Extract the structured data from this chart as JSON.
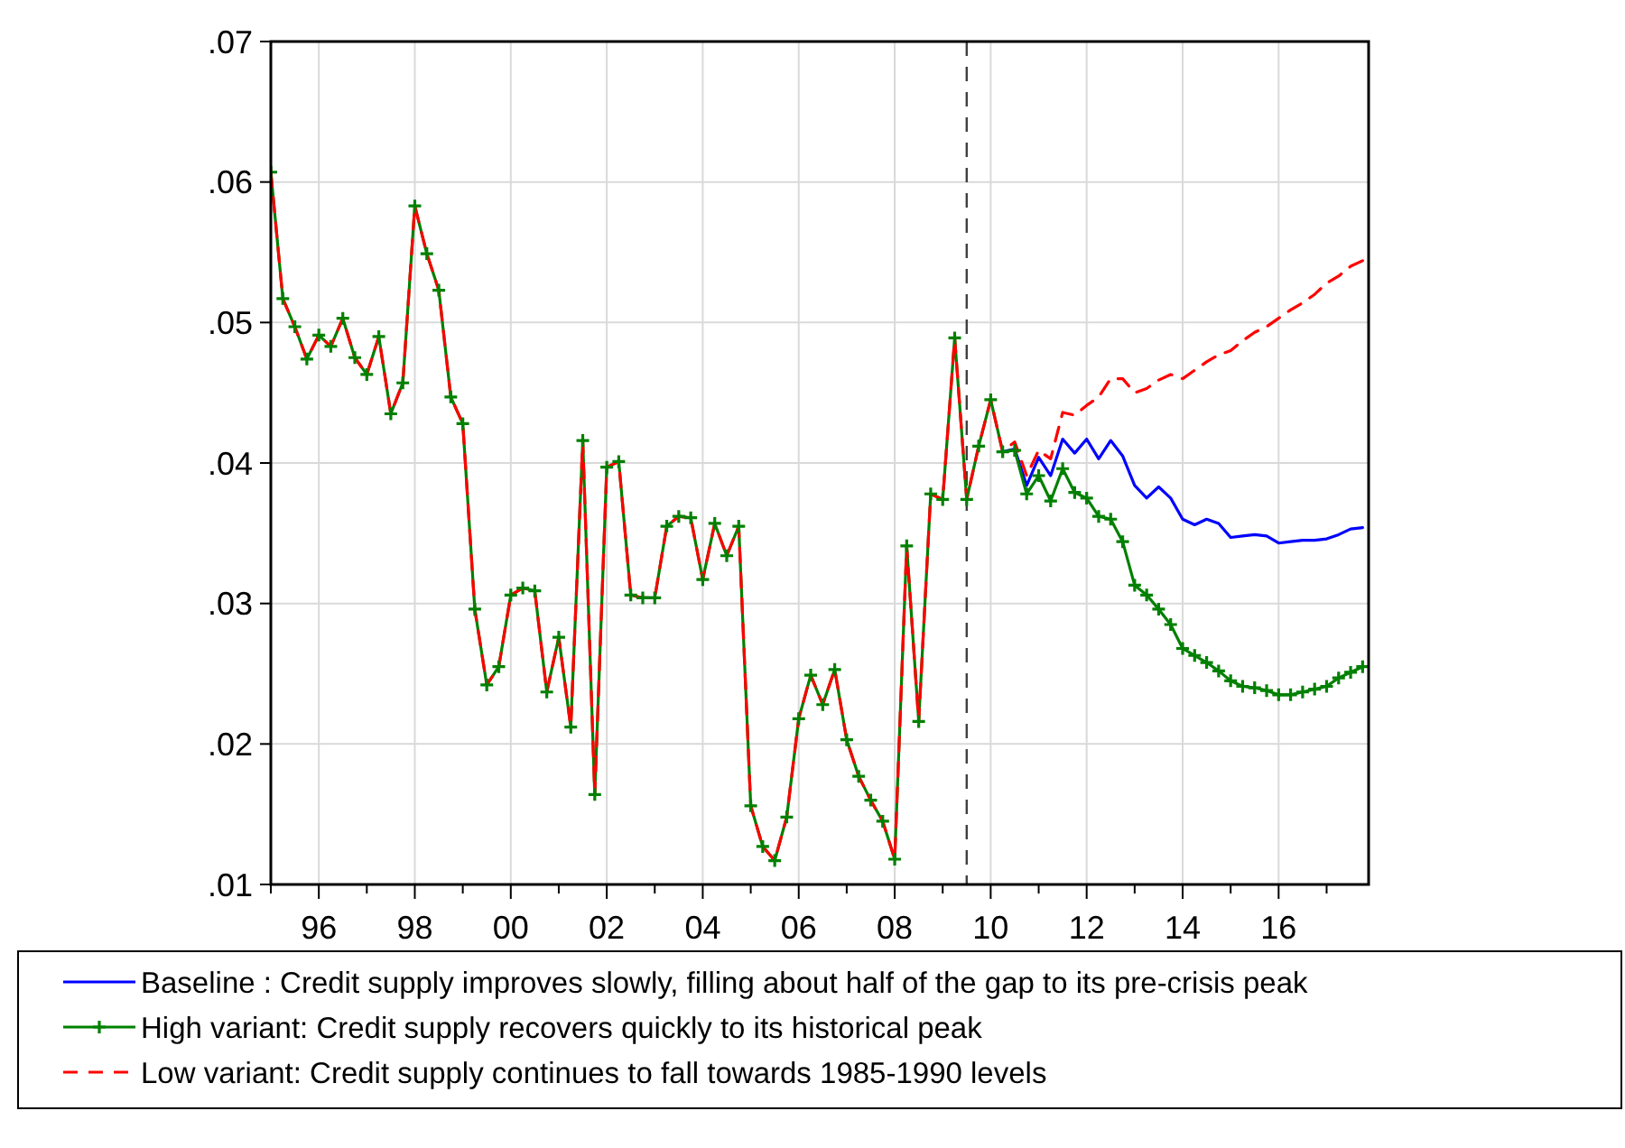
{
  "chart_data": {
    "type": "line",
    "x": [
      1995,
      1995.25,
      1995.5,
      1995.75,
      1996,
      1996.25,
      1996.5,
      1996.75,
      1997,
      1997.25,
      1997.5,
      1997.75,
      1998,
      1998.25,
      1998.5,
      1998.75,
      1999,
      1999.25,
      1999.5,
      1999.75,
      2000,
      2000.25,
      2000.5,
      2000.75,
      2001,
      2001.25,
      2001.5,
      2001.75,
      2002,
      2002.25,
      2002.5,
      2002.75,
      2003,
      2003.25,
      2003.5,
      2003.75,
      2004,
      2004.25,
      2004.5,
      2004.75,
      2005,
      2005.25,
      2005.5,
      2005.75,
      2006,
      2006.25,
      2006.5,
      2006.75,
      2007,
      2007.25,
      2007.5,
      2007.75,
      2008,
      2008.25,
      2008.5,
      2008.75,
      2009,
      2009.25,
      2009.5,
      2009.75,
      2010,
      2010.25,
      2010.5,
      2010.75,
      2011,
      2011.25,
      2011.5,
      2011.75,
      2012,
      2012.25,
      2012.5,
      2012.75,
      2013,
      2013.25,
      2013.5,
      2013.75,
      2014,
      2014.25,
      2014.5,
      2014.75,
      2015,
      2015.25,
      2015.5,
      2015.75,
      2016,
      2016.25,
      2016.5,
      2016.75,
      2017,
      2017.25,
      2017.5,
      2017.75
    ],
    "series": [
      {
        "name": "Baseline : Credit supply improves slowly, filling about half of the gap to its pre-crisis peak",
        "color": "#0000ff",
        "marker": "none",
        "line_style": "solid",
        "values": [
          null,
          null,
          null,
          null,
          null,
          null,
          null,
          null,
          null,
          null,
          null,
          null,
          null,
          null,
          null,
          null,
          null,
          null,
          null,
          null,
          null,
          null,
          null,
          null,
          null,
          null,
          null,
          null,
          null,
          null,
          null,
          null,
          null,
          null,
          null,
          null,
          null,
          null,
          null,
          null,
          null,
          null,
          null,
          null,
          null,
          null,
          null,
          null,
          null,
          null,
          null,
          null,
          null,
          null,
          null,
          null,
          null,
          null,
          null,
          null,
          null,
          0.0408,
          0.041,
          0.0384,
          0.0404,
          0.0391,
          0.0417,
          0.0407,
          0.0417,
          0.0403,
          0.0416,
          0.0405,
          0.0384,
          0.0375,
          0.0383,
          0.0375,
          0.036,
          0.0356,
          0.036,
          0.0357,
          0.0347,
          0.0348,
          0.0349,
          0.0348,
          0.0343,
          0.0344,
          0.0345,
          0.0345,
          0.0346,
          0.0349,
          0.0353,
          0.0354
        ]
      },
      {
        "name": "High variant: Credit supply recovers quickly to its historical peak",
        "color": "#008000",
        "marker": "cross",
        "line_style": "solid",
        "values": [
          0.0607,
          0.0517,
          0.0497,
          0.0474,
          0.0491,
          0.0483,
          0.0503,
          0.0475,
          0.0463,
          0.049,
          0.0435,
          0.0457,
          0.0583,
          0.0549,
          0.0523,
          0.0447,
          0.0428,
          0.0296,
          0.0242,
          0.0255,
          0.0306,
          0.0311,
          0.0309,
          0.0237,
          0.0276,
          0.0212,
          0.0416,
          0.0164,
          0.0397,
          0.0401,
          0.0306,
          0.0304,
          0.0304,
          0.0355,
          0.0362,
          0.0361,
          0.0317,
          0.0357,
          0.0334,
          0.0355,
          0.0156,
          0.0127,
          0.0117,
          0.0148,
          0.0218,
          0.0249,
          0.0228,
          0.0253,
          0.0203,
          0.0177,
          0.016,
          0.0145,
          0.0118,
          0.0341,
          0.0216,
          0.0378,
          0.0374,
          0.0489,
          0.0374,
          0.0412,
          0.0445,
          0.0408,
          0.0409,
          0.0378,
          0.0391,
          0.0373,
          0.0396,
          0.0379,
          0.0375,
          0.0362,
          0.036,
          0.0344,
          0.0313,
          0.0306,
          0.0296,
          0.0285,
          0.0268,
          0.0263,
          0.0258,
          0.0252,
          0.0245,
          0.0241,
          0.024,
          0.0238,
          0.0235,
          0.0235,
          0.0237,
          0.0239,
          0.0241,
          0.0247,
          0.0251,
          0.0255
        ]
      },
      {
        "name": "Low variant: Credit supply continues to fall towards 1985-1990 levels",
        "color": "#ff0000",
        "marker": "none",
        "line_style": "dashed",
        "values": [
          0.0607,
          0.0517,
          0.0497,
          0.0474,
          0.0491,
          0.0483,
          0.0503,
          0.0475,
          0.0463,
          0.049,
          0.0435,
          0.0457,
          0.0583,
          0.0549,
          0.0523,
          0.0447,
          0.0428,
          0.0296,
          0.0242,
          0.0255,
          0.0306,
          0.0311,
          0.0309,
          0.0237,
          0.0276,
          0.0212,
          0.0416,
          0.0164,
          0.0397,
          0.0401,
          0.0306,
          0.0304,
          0.0304,
          0.0355,
          0.0362,
          0.0361,
          0.0317,
          0.0357,
          0.0334,
          0.0355,
          0.0156,
          0.0127,
          0.0117,
          0.0148,
          0.0218,
          0.0249,
          0.0228,
          0.0253,
          0.0203,
          0.0177,
          0.016,
          0.0145,
          0.0118,
          0.0341,
          0.0216,
          0.0378,
          0.0374,
          0.0489,
          0.0374,
          0.0412,
          0.0445,
          0.0408,
          0.0415,
          0.0391,
          0.0409,
          0.0403,
          0.0436,
          0.0434,
          0.0441,
          0.0447,
          0.046,
          0.046,
          0.045,
          0.0453,
          0.0459,
          0.0463,
          0.046,
          0.0466,
          0.0472,
          0.0477,
          0.048,
          0.0487,
          0.0493,
          0.0497,
          0.0503,
          0.0509,
          0.0514,
          0.052,
          0.0528,
          0.0533,
          0.054,
          0.0544
        ]
      }
    ],
    "xlim": [
      1995,
      2017.875
    ],
    "xticks": [
      {
        "value": 1995,
        "label": null
      },
      {
        "value": 1996,
        "label": "96"
      },
      {
        "value": 1997,
        "label": null
      },
      {
        "value": 1998,
        "label": "98"
      },
      {
        "value": 1999,
        "label": null
      },
      {
        "value": 2000,
        "label": "00"
      },
      {
        "value": 2001,
        "label": null
      },
      {
        "value": 2002,
        "label": "02"
      },
      {
        "value": 2003,
        "label": null
      },
      {
        "value": 2004,
        "label": "04"
      },
      {
        "value": 2005,
        "label": null
      },
      {
        "value": 2006,
        "label": "06"
      },
      {
        "value": 2007,
        "label": null
      },
      {
        "value": 2008,
        "label": "08"
      },
      {
        "value": 2009,
        "label": null
      },
      {
        "value": 2010,
        "label": "10"
      },
      {
        "value": 2011,
        "label": null
      },
      {
        "value": 2012,
        "label": "12"
      },
      {
        "value": 2013,
        "label": null
      },
      {
        "value": 2014,
        "label": "14"
      },
      {
        "value": 2015,
        "label": null
      },
      {
        "value": 2016,
        "label": "16"
      },
      {
        "value": 2017,
        "label": null
      }
    ],
    "ylim": [
      0.01,
      0.07
    ],
    "yticks": [
      {
        "value": 0.01,
        "label": ".01"
      },
      {
        "value": 0.02,
        "label": ".02"
      },
      {
        "value": 0.03,
        "label": ".03"
      },
      {
        "value": 0.04,
        "label": ".04"
      },
      {
        "value": 0.05,
        "label": ".05"
      },
      {
        "value": 0.06,
        "label": ".06"
      },
      {
        "value": 0.07,
        "label": ".07"
      }
    ],
    "ref_lines": [
      {
        "axis": "x",
        "value": 2009.5,
        "label": null,
        "color": "#404040",
        "line_style": "dashed"
      }
    ],
    "grid": true,
    "legend": "bottom"
  }
}
